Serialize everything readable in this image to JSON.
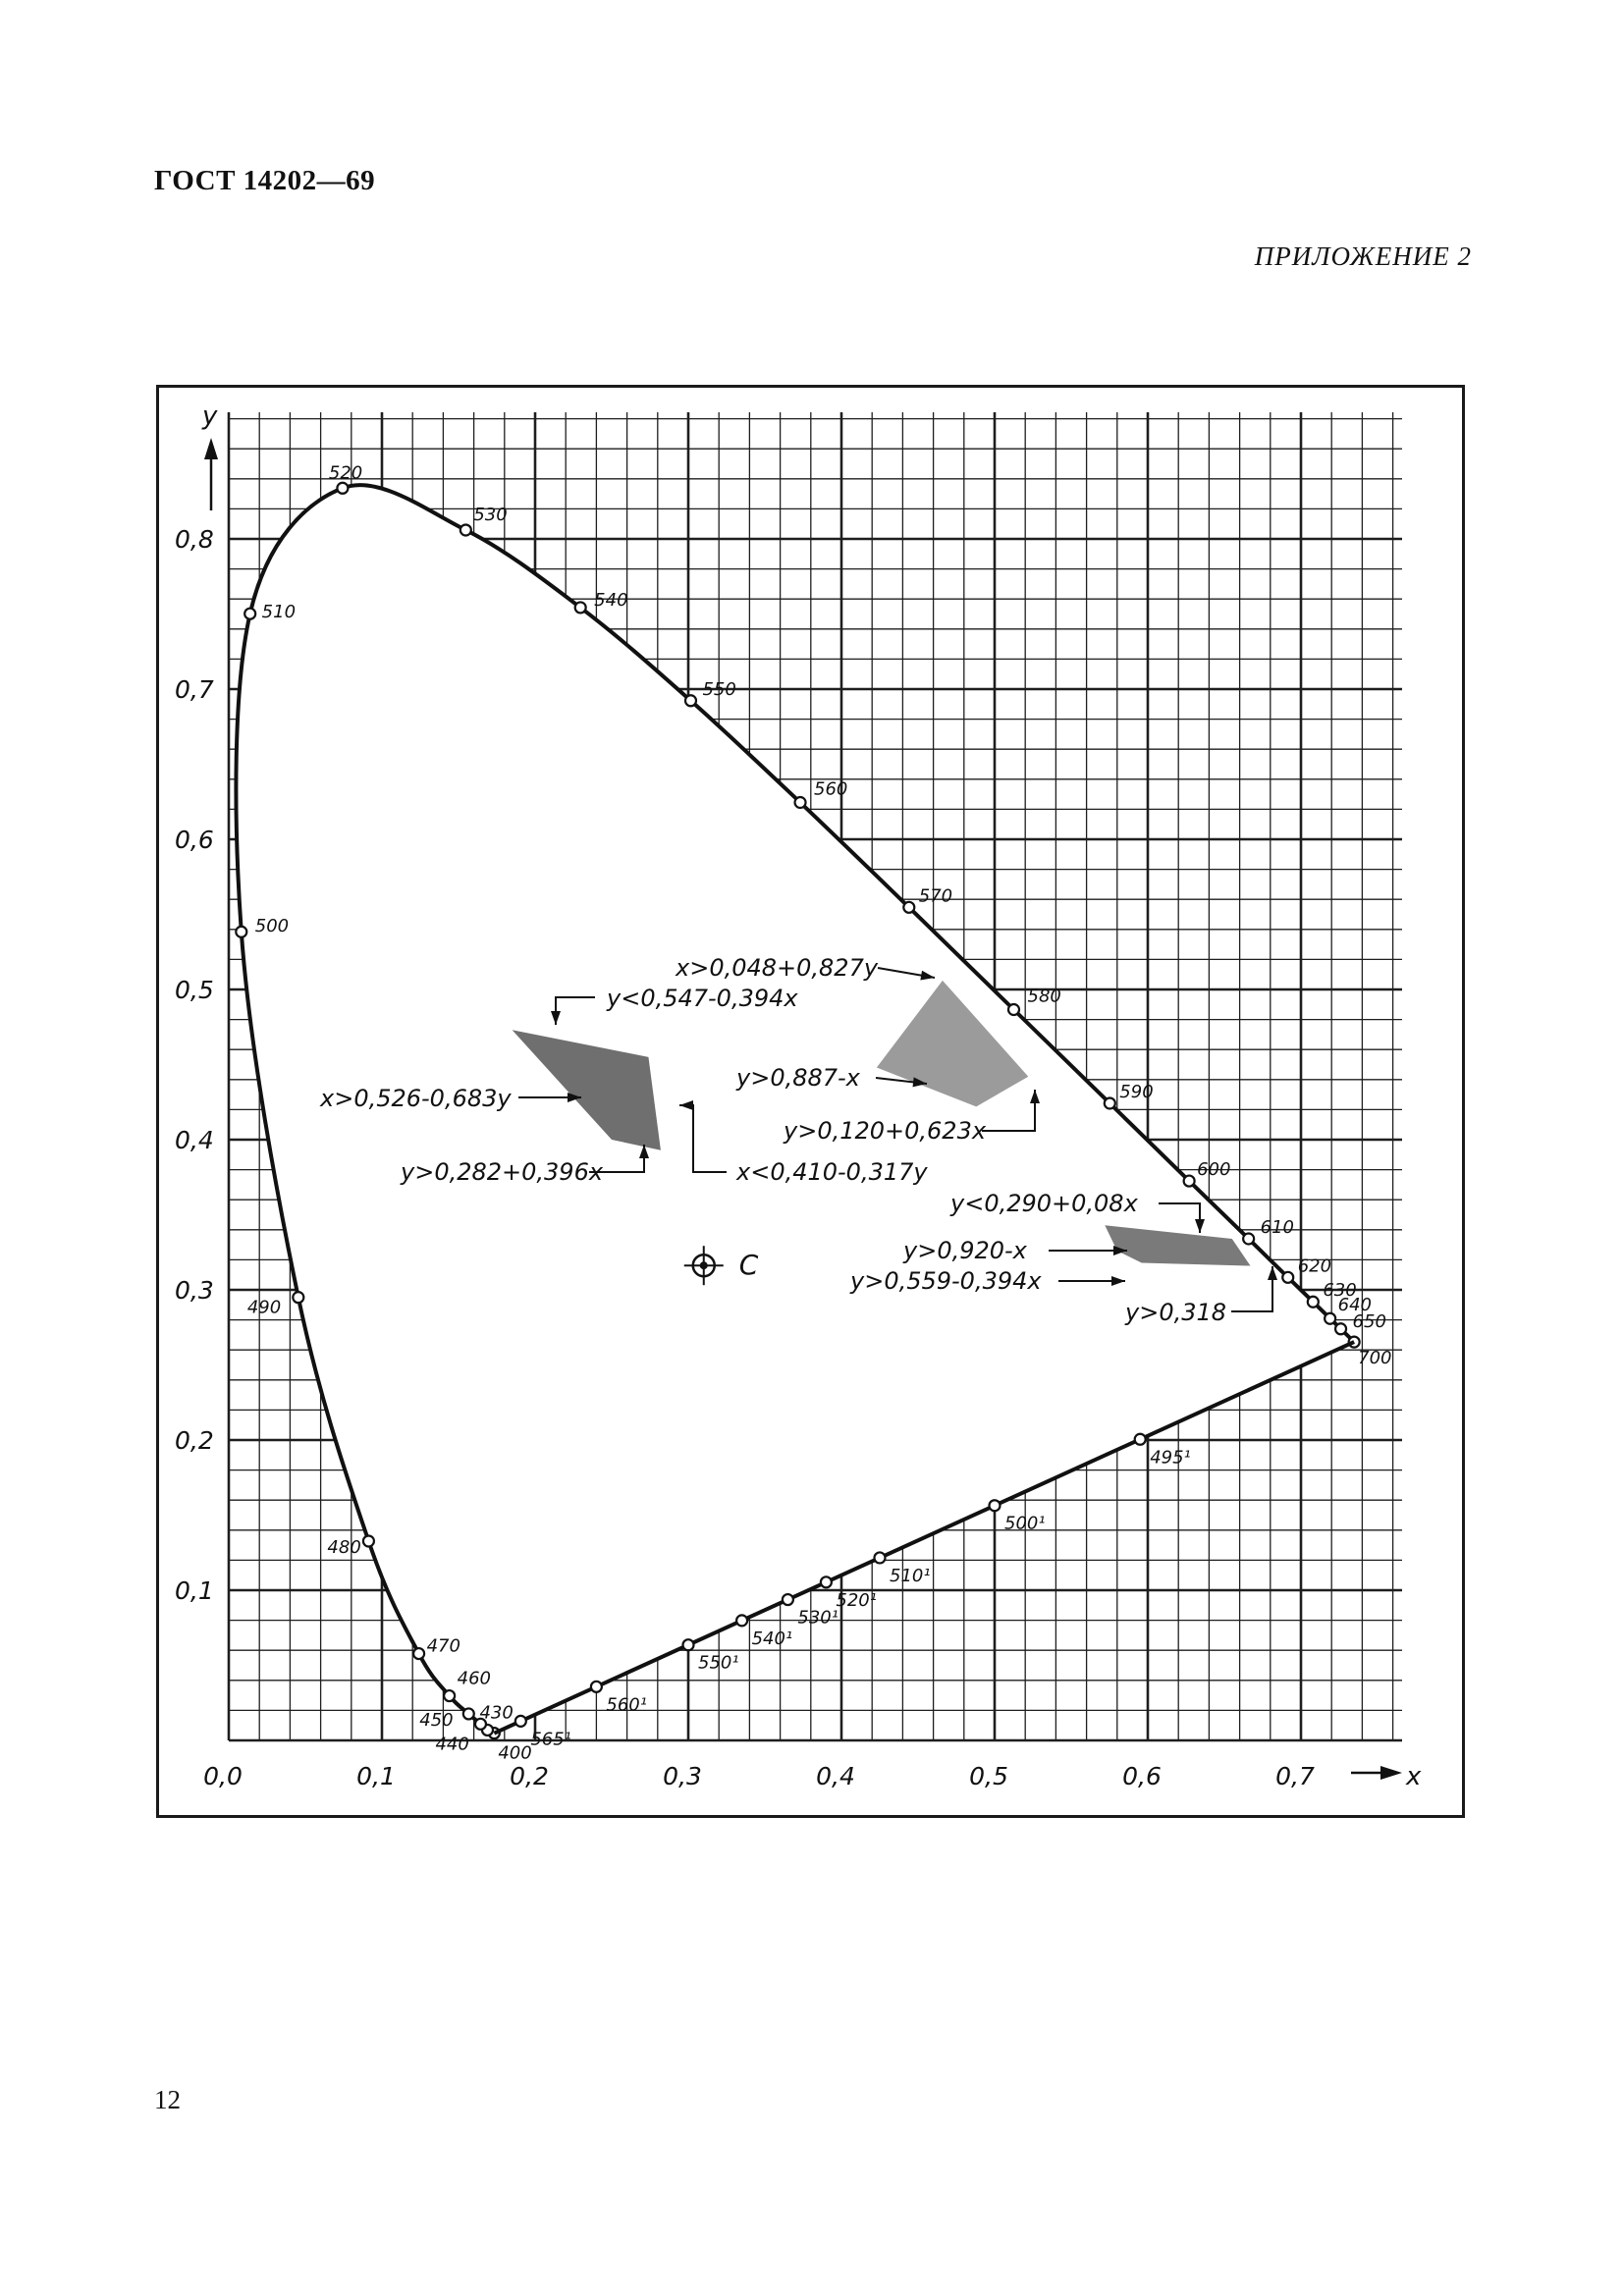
{
  "header": {
    "standard": "ГОСТ 14202—69",
    "appendix": "ПРИЛОЖЕНИЕ 2",
    "page_number": "12"
  },
  "chart_data": {
    "type": "scatter",
    "title": "",
    "xlabel": "x",
    "ylabel": "y",
    "xlim": [
      0.0,
      0.75
    ],
    "ylim": [
      0.0,
      0.88
    ],
    "grid": true,
    "x_ticks": [
      "0,0",
      "0,1",
      "0,2",
      "0,3",
      "0,4",
      "0,5",
      "0,6",
      "0,7"
    ],
    "y_ticks": [
      "0,1",
      "0,2",
      "0,3",
      "0,4",
      "0,5",
      "0,6",
      "0,7",
      "0,8"
    ],
    "spectral_locus": [
      {
        "label": "400",
        "x": 0.1733,
        "y": 0.0048
      },
      {
        "label": "430",
        "x": 0.1689,
        "y": 0.0069
      },
      {
        "label": "440",
        "x": 0.1644,
        "y": 0.0109
      },
      {
        "label": "450",
        "x": 0.1566,
        "y": 0.0177
      },
      {
        "label": "460",
        "x": 0.144,
        "y": 0.0297
      },
      {
        "label": "470",
        "x": 0.1241,
        "y": 0.0578
      },
      {
        "label": "480",
        "x": 0.0913,
        "y": 0.1327
      },
      {
        "label": "490",
        "x": 0.0454,
        "y": 0.295
      },
      {
        "label": "500",
        "x": 0.0082,
        "y": 0.5384
      },
      {
        "label": "510",
        "x": 0.0139,
        "y": 0.7502
      },
      {
        "label": "520",
        "x": 0.0743,
        "y": 0.8338
      },
      {
        "label": "530",
        "x": 0.1547,
        "y": 0.8059
      },
      {
        "label": "540",
        "x": 0.2296,
        "y": 0.7543
      },
      {
        "label": "550",
        "x": 0.3016,
        "y": 0.6923
      },
      {
        "label": "560",
        "x": 0.3731,
        "y": 0.6245
      },
      {
        "label": "570",
        "x": 0.4441,
        "y": 0.5547
      },
      {
        "label": "580",
        "x": 0.5125,
        "y": 0.4866
      },
      {
        "label": "590",
        "x": 0.5752,
        "y": 0.4242
      },
      {
        "label": "600",
        "x": 0.627,
        "y": 0.3725
      },
      {
        "label": "610",
        "x": 0.6658,
        "y": 0.334
      },
      {
        "label": "620",
        "x": 0.6915,
        "y": 0.3083
      },
      {
        "label": "630",
        "x": 0.7079,
        "y": 0.292
      },
      {
        "label": "640",
        "x": 0.719,
        "y": 0.2809
      },
      {
        "label": "650",
        "x": 0.726,
        "y": 0.274
      },
      {
        "label": "700",
        "x": 0.7347,
        "y": 0.2653
      }
    ],
    "purple_line": [
      {
        "label": "565¹",
        "x": 0.1906,
        "y": 0.0143
      },
      {
        "label": "560¹",
        "x": 0.24,
        "y": 0.043
      },
      {
        "label": "550¹",
        "x": 0.3,
        "y": 0.07
      },
      {
        "label": "540¹",
        "x": 0.335,
        "y": 0.088
      },
      {
        "label": "530¹",
        "x": 0.365,
        "y": 0.102
      },
      {
        "label": "520¹",
        "x": 0.39,
        "y": 0.114
      },
      {
        "label": "510¹",
        "x": 0.425,
        "y": 0.13
      },
      {
        "label": "500¹",
        "x": 0.5,
        "y": 0.166
      },
      {
        "label": "495¹",
        "x": 0.595,
        "y": 0.21
      }
    ],
    "white_point": {
      "label": "C",
      "x": 0.3101,
      "y": 0.3162
    },
    "regions": [
      {
        "name": "green-blue",
        "shade": "#6f6f6f",
        "vertices": [
          [
            0.185,
            0.473
          ],
          [
            0.274,
            0.455
          ],
          [
            0.282,
            0.393
          ],
          [
            0.25,
            0.4
          ]
        ],
        "labels": [
          "y<0,547-0,394x",
          "x>0,526-0,683y",
          "y>0,282+0,396x",
          "x<0,410-0,317y"
        ]
      },
      {
        "name": "yellow",
        "shade": "#9b9b9b",
        "vertices": [
          [
            0.423,
            0.448
          ],
          [
            0.466,
            0.506
          ],
          [
            0.522,
            0.442
          ],
          [
            0.488,
            0.422
          ]
        ],
        "labels": [
          "x>0,048+0,827y",
          "y>0,887-x",
          "y>0,120+0,623x"
        ]
      },
      {
        "name": "red",
        "shade": "#7a7a7a",
        "vertices": [
          [
            0.572,
            0.343
          ],
          [
            0.655,
            0.334
          ],
          [
            0.667,
            0.316
          ],
          [
            0.596,
            0.318
          ],
          [
            0.58,
            0.326
          ]
        ],
        "labels": [
          "y<0,290+0,08x",
          "y>0,920-x",
          "y>0,559-0,394x",
          "y>0,318"
        ]
      }
    ]
  }
}
